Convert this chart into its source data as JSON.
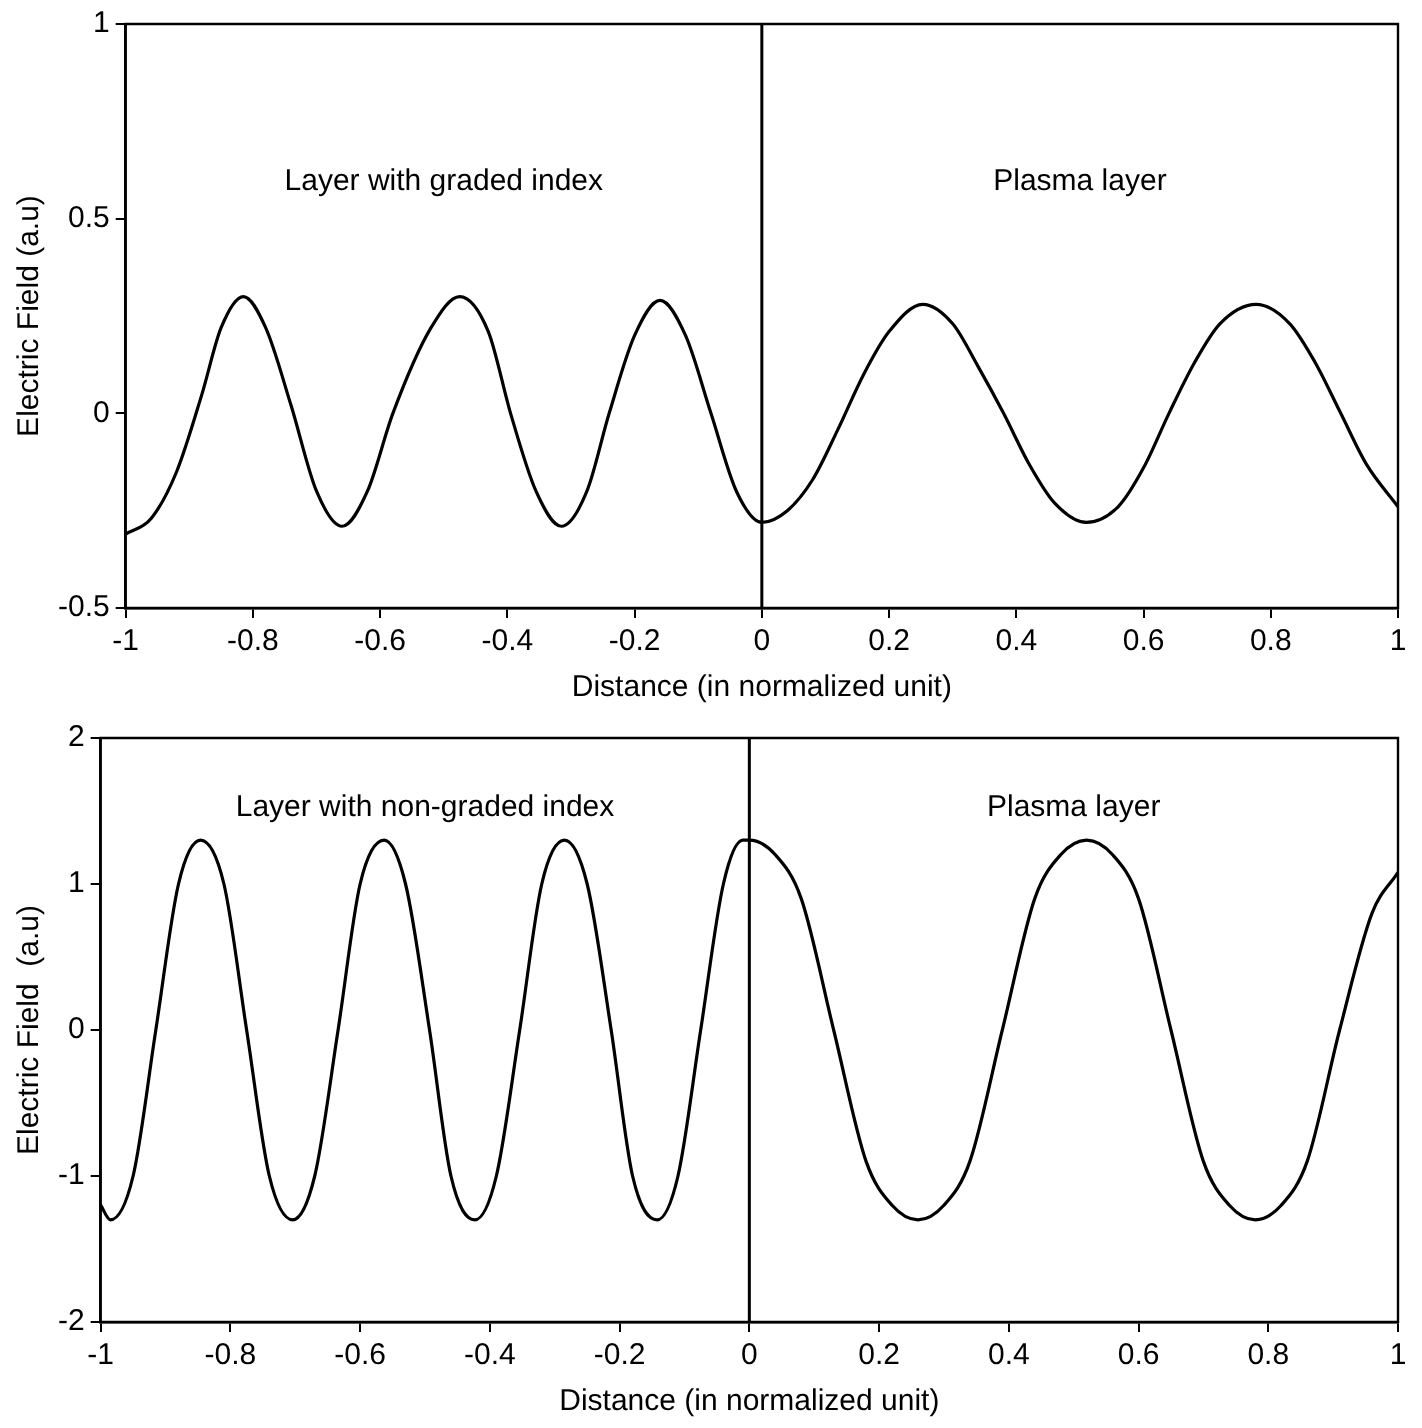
{
  "chart_data": [
    {
      "type": "line",
      "xlabel": "Distance (in normalized unit)",
      "ylabel": "Electric Field (a.u)",
      "annotations": [
        "Layer with graded index",
        "Plasma layer"
      ],
      "xlim": [
        -1,
        1
      ],
      "xticks": [
        -1,
        -0.8,
        -0.6,
        -0.4,
        -0.2,
        0,
        0.2,
        0.4,
        0.6,
        0.8,
        1
      ],
      "ylim": [
        -0.5,
        1
      ],
      "yticks": [
        -0.5,
        0,
        0.5,
        1
      ],
      "ref_lines": [
        {
          "axis": "x",
          "value": 0,
          "color": "#000000"
        }
      ],
      "series": [
        {
          "color": "#000000",
          "x": [
            -1,
            -0.96,
            -0.92,
            -0.88,
            -0.85,
            -0.815,
            -0.78,
            -0.74,
            -0.7,
            -0.66,
            -0.62,
            -0.58,
            -0.52,
            -0.475,
            -0.43,
            -0.395,
            -0.355,
            -0.315,
            -0.275,
            -0.24,
            -0.2,
            -0.16,
            -0.12,
            -0.08,
            -0.04,
            0,
            0.04,
            0.08,
            0.12,
            0.16,
            0.2,
            0.253,
            0.3,
            0.34,
            0.38,
            0.42,
            0.46,
            0.51,
            0.56,
            0.6,
            0.64,
            0.68,
            0.72,
            0.777,
            0.83,
            0.87,
            0.91,
            0.95,
            1
          ],
          "values": [
            -0.31,
            -0.27,
            -0.15,
            0.05,
            0.22,
            0.3,
            0.22,
            0.02,
            -0.2,
            -0.29,
            -0.2,
            0,
            0.22,
            0.3,
            0.21,
            0,
            -0.2,
            -0.29,
            -0.2,
            0,
            0.2,
            0.29,
            0.2,
            0,
            -0.2,
            -0.28,
            -0.25,
            -0.17,
            -0.04,
            0.1,
            0.21,
            0.28,
            0.23,
            0.12,
            0,
            -0.13,
            -0.23,
            -0.28,
            -0.24,
            -0.14,
            0,
            0.13,
            0.23,
            0.28,
            0.23,
            0.13,
            0,
            -0.13,
            -0.24
          ]
        }
      ]
    },
    {
      "type": "line",
      "xlabel": "Distance (in normalized unit)",
      "ylabel": "Electric Field  (a.u)",
      "annotations": [
        "Layer with non-graded index",
        "Plasma layer"
      ],
      "xlim": [
        -1,
        1
      ],
      "xticks": [
        -1,
        -0.8,
        -0.6,
        -0.4,
        -0.2,
        0,
        0.2,
        0.4,
        0.6,
        0.8,
        1
      ],
      "ylim": [
        -2,
        2
      ],
      "yticks": [
        -2,
        -1,
        0,
        1,
        2
      ],
      "ref_lines": [
        {
          "axis": "x",
          "value": 0,
          "color": "#000000"
        }
      ],
      "series": [
        {
          "color": "#000000",
          "x": [
            -1,
            -0.985,
            -0.95,
            -0.915,
            -0.88,
            -0.846,
            -0.81,
            -0.775,
            -0.74,
            -0.704,
            -0.67,
            -0.634,
            -0.6,
            -0.563,
            -0.53,
            -0.493,
            -0.46,
            -0.423,
            -0.39,
            -0.354,
            -0.32,
            -0.285,
            -0.25,
            -0.213,
            -0.18,
            -0.142,
            -0.11,
            -0.075,
            -0.04,
            -0.01,
            0,
            0.04,
            0.08,
            0.13,
            0.18,
            0.22,
            0.26,
            0.3,
            0.34,
            0.39,
            0.44,
            0.48,
            0.52,
            0.56,
            0.6,
            0.65,
            0.7,
            0.74,
            0.78,
            0.82,
            0.86,
            0.91,
            0.96,
            1
          ],
          "values": [
            -1.2,
            -1.3,
            -1,
            0,
            1,
            1.3,
            1,
            0,
            -1,
            -1.3,
            -1,
            0,
            1,
            1.3,
            1,
            0,
            -1,
            -1.3,
            -1,
            0,
            1,
            1.3,
            1,
            0,
            -1,
            -1.3,
            -1,
            0,
            1,
            1.3,
            1.3,
            1.2,
            0.9,
            0,
            -0.9,
            -1.2,
            -1.3,
            -1.2,
            -0.9,
            0,
            0.9,
            1.2,
            1.3,
            1.2,
            0.9,
            0,
            -0.9,
            -1.2,
            -1.3,
            -1.2,
            -0.9,
            0,
            0.8,
            1.08
          ]
        }
      ]
    }
  ]
}
